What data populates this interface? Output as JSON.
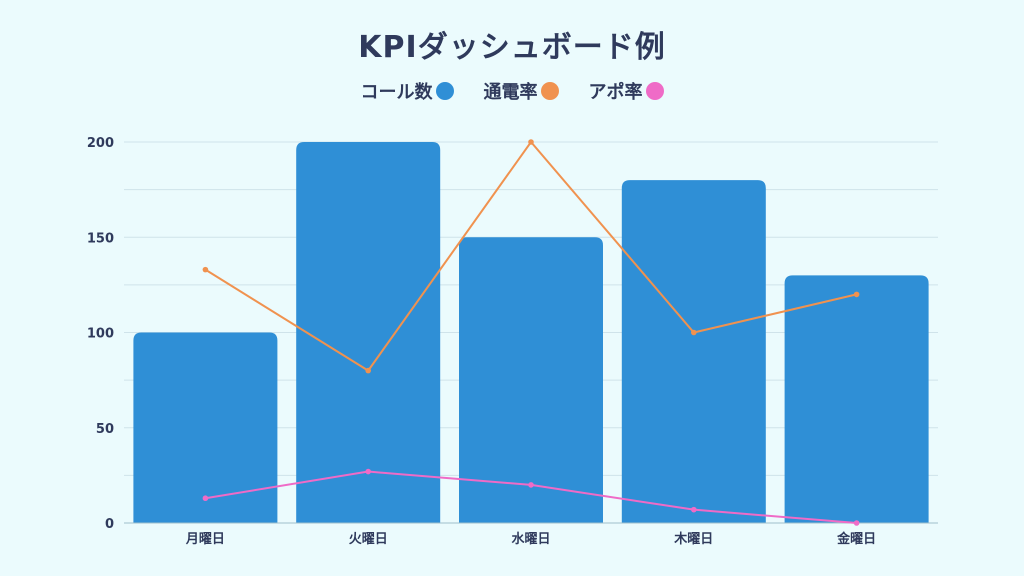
{
  "title": "KPIダッシュボード例",
  "legend": [
    {
      "label": "コール数",
      "color": "#2f8fd6"
    },
    {
      "label": "通電率",
      "color": "#f0924f"
    },
    {
      "label": "アポ率",
      "color": "#ef6bc7"
    }
  ],
  "chart_data": {
    "type": "bar",
    "title": "KPIダッシュボード例",
    "xlabel": "",
    "ylabel": "",
    "categories": [
      "月曜日",
      "火曜日",
      "水曜日",
      "木曜日",
      "金曜日"
    ],
    "ylim": [
      0,
      200
    ],
    "yticks": [
      0,
      50,
      100,
      150,
      200
    ],
    "grid": true,
    "legend_position": "top",
    "series": [
      {
        "name": "コール数",
        "type": "bar",
        "color": "#2f8fd6",
        "values": [
          100,
          200,
          150,
          180,
          130
        ]
      },
      {
        "name": "通電率",
        "type": "line",
        "color": "#f0924f",
        "values": [
          133,
          80,
          200,
          100,
          120
        ]
      },
      {
        "name": "アポ率",
        "type": "line",
        "color": "#ef6bc7",
        "values": [
          13,
          27,
          20,
          7,
          0
        ]
      }
    ]
  }
}
